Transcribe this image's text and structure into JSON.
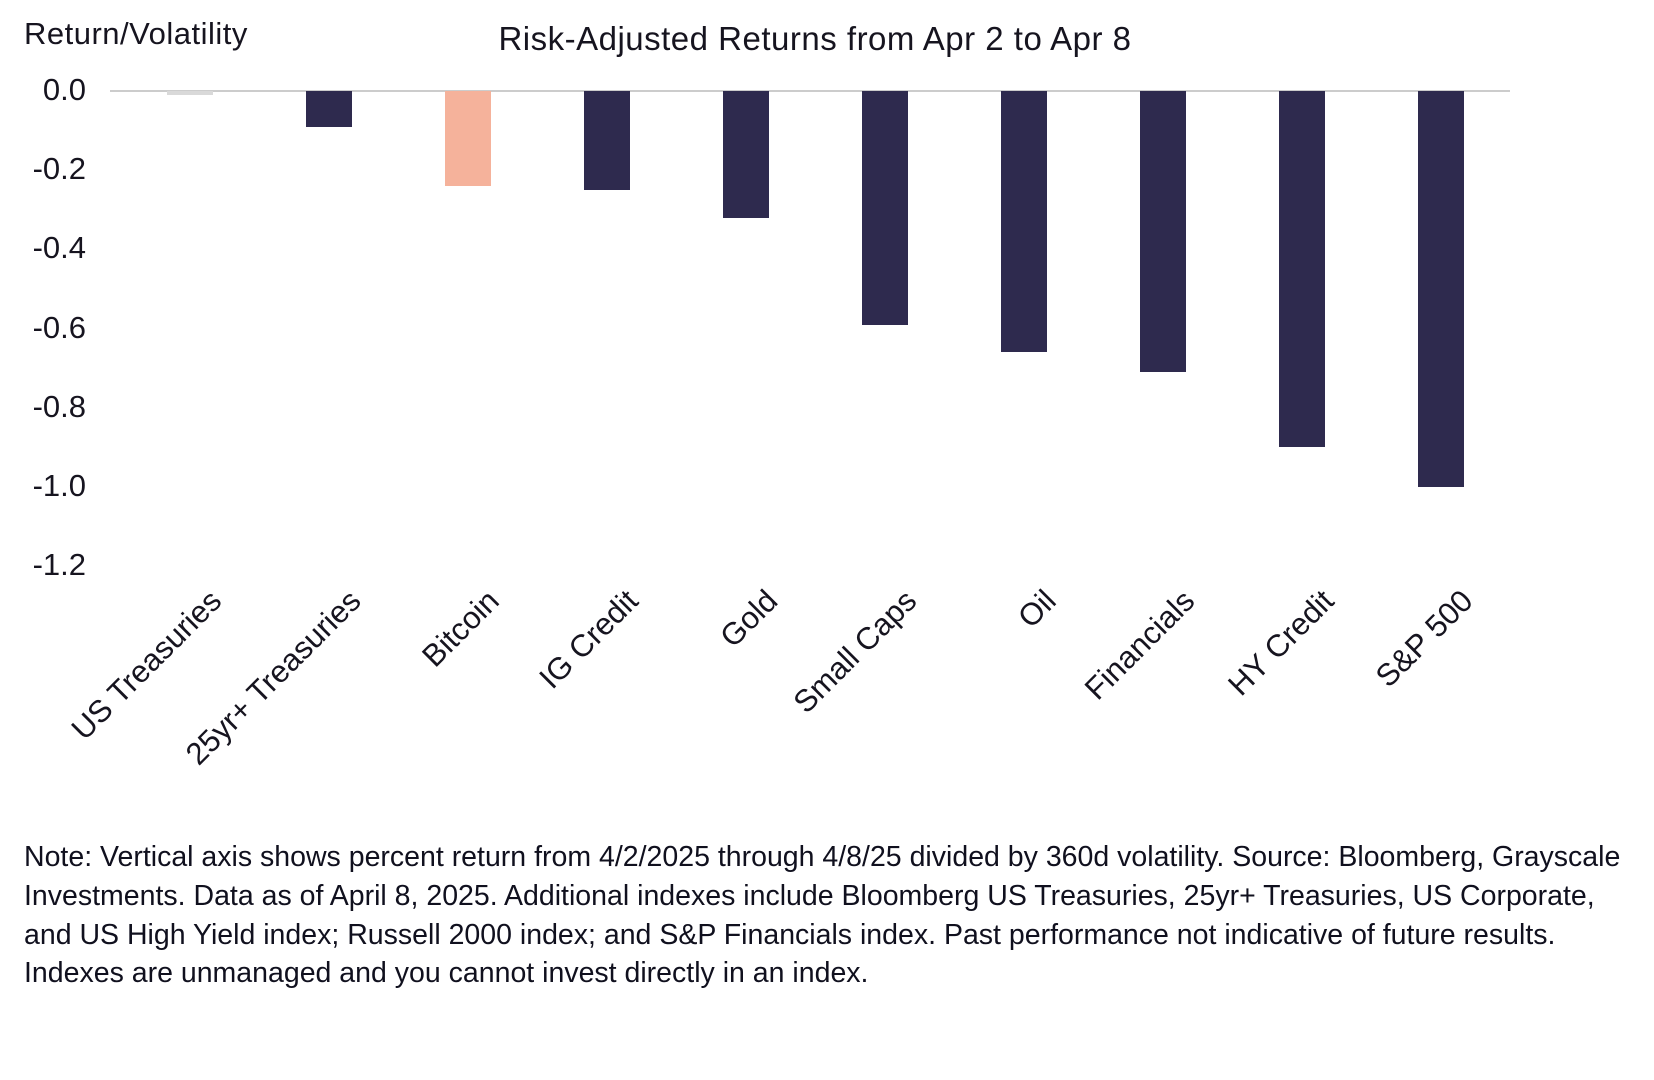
{
  "chart_data": {
    "type": "bar",
    "title": "Risk-Adjusted Returns from Apr 2 to Apr 8",
    "ylabel": "Return/Volatility",
    "xlabel": "",
    "categories": [
      "US Treasuries",
      "25yr+ Treasuries",
      "Bitcoin",
      "IG Credit",
      "Gold",
      "Small Caps",
      "Oil",
      "Financials",
      "HY Credit",
      "S&P 500"
    ],
    "values": [
      -0.01,
      -0.09,
      -0.24,
      -0.25,
      -0.32,
      -0.59,
      -0.66,
      -0.71,
      -0.9,
      -1.0
    ],
    "ylim": [
      -1.2,
      0
    ],
    "yticks": [
      {
        "value": 0.0,
        "label": "0.0"
      },
      {
        "value": -0.2,
        "label": "-0.2"
      },
      {
        "value": -0.4,
        "label": "-0.4"
      },
      {
        "value": -0.6,
        "label": "-0.6"
      },
      {
        "value": -0.8,
        "label": "-0.8"
      },
      {
        "value": -1.0,
        "label": "-1.0"
      },
      {
        "value": -1.2,
        "label": "-1.2"
      }
    ],
    "grid": false,
    "legend": "none",
    "bar_color": "#2e2a4e",
    "highlight_color": "#f5b29b",
    "highlight_index": 2,
    "first_bar_color": "#d9d9d9",
    "zero_line_color": "#cccccc"
  },
  "note": "Note: Vertical axis shows percent return from 4/2/2025 through 4/8/25 divided by 360d volatility. Source: Bloomberg, Grayscale Investments. Data as of April 8, 2025. Additional indexes include Bloomberg US Treasuries, 25yr+ Treasuries, US Corporate, and US High Yield index; Russell 2000 index; and S&P Financials index. Past performance not indicative of future results. Indexes are unmanaged and you cannot invest directly in an index."
}
